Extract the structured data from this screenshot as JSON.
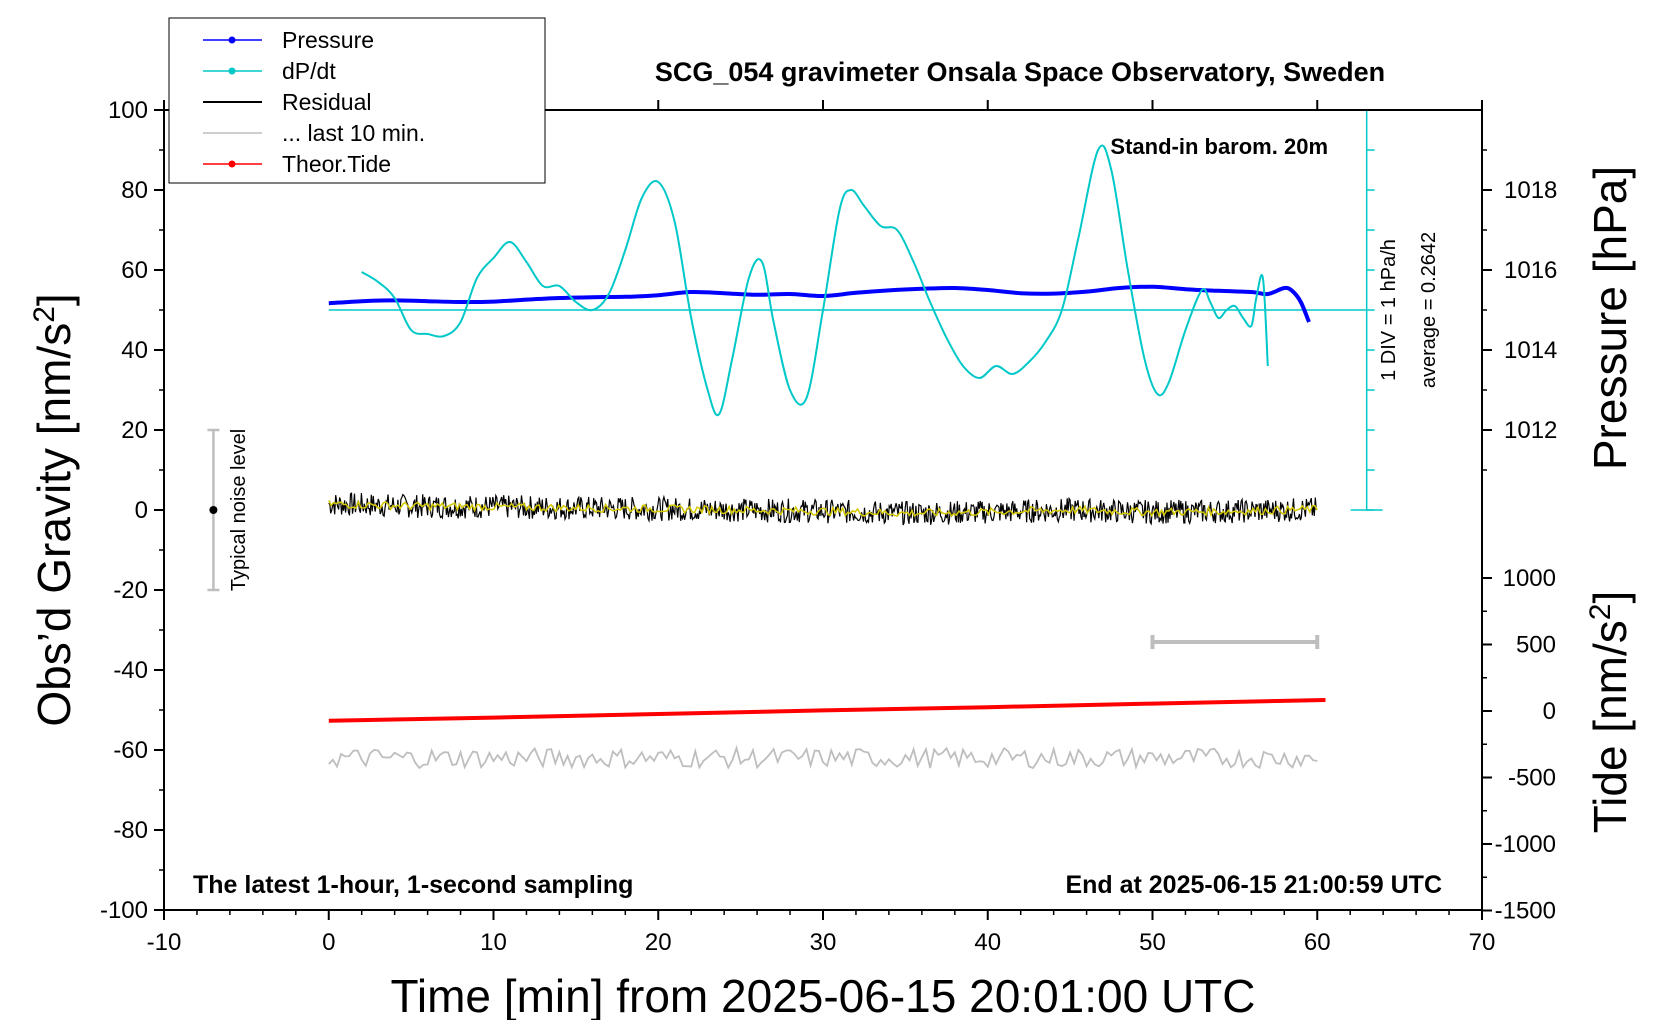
{
  "chart_data": {
    "type": "line",
    "title": "SCG_054 gravimeter Onsala Space Observatory, Sweden",
    "xlabel": "Time [min] from 2025-06-15 20:01:00 UTC",
    "ylabel_left": "Obs’d Gravity [nm/s",
    "ylabel_left_sup": "2",
    "ylabel_left_end": "]",
    "ylabel_right_pressure": "Pressure [hPa]",
    "ylabel_right_tide": "Tide [nm/s",
    "ylabel_right_tide_sup": "2",
    "ylabel_right_tide_end": "]",
    "xlim": [
      -10,
      70
    ],
    "ylim": [
      -100,
      100
    ],
    "x_ticks": [
      "-10",
      "0",
      "10",
      "20",
      "30",
      "40",
      "50",
      "60",
      "70"
    ],
    "y_ticks": [
      "100",
      "80",
      "60",
      "40",
      "20",
      "0",
      "-20",
      "-40",
      "-60",
      "-80",
      "-100"
    ],
    "pressure_axis": {
      "ticks": [
        "1018",
        "1016",
        "1014",
        "1012"
      ],
      "values": [
        1018,
        1016,
        1014,
        1012
      ],
      "unit_per_gravity_unit": 0.1,
      "offset_hpa": 1010
    },
    "tide_axis": {
      "ticks": [
        "1000",
        "500",
        "0",
        "-500",
        "-1000",
        "-1500"
      ],
      "values": [
        1000,
        500,
        0,
        -500,
        -1000,
        -1500
      ]
    },
    "legend": {
      "placement": "top-left",
      "entries": [
        {
          "label": "Pressure",
          "color": "#0000ff",
          "marker": true
        },
        {
          "label": "dP/dt",
          "color": "#00c8c8",
          "marker": true
        },
        {
          "label": "Residual",
          "color": "#000000",
          "marker": false
        },
        {
          "label": "... last 10 min.",
          "color": "#bebebe",
          "marker": false
        },
        {
          "label": "Theor.Tide",
          "color": "#ff0000",
          "marker": true
        }
      ]
    },
    "annotations": {
      "barometer": "Stand-in barom. 20m",
      "bottom_left": "The latest 1-hour, 1-second sampling",
      "bottom_right": "End at 2025-06-15 21:00:59 UTC",
      "scale_div": "1 DIV = 1 hPa/h",
      "average": "average = 0.2642",
      "noise": "Typical noise level"
    },
    "series": [
      {
        "name": "Pressure",
        "color": "#0000ff",
        "unit": "hPa",
        "x": [
          0,
          2,
          4,
          6,
          8,
          10,
          12,
          14,
          16,
          18,
          20,
          22,
          24,
          26,
          28,
          30,
          32,
          34,
          36,
          38,
          40,
          42,
          44,
          46,
          48,
          50,
          52,
          54,
          56,
          57,
          58,
          58.5,
          59,
          59.5
        ],
        "values": [
          1015.17,
          1015.22,
          1015.24,
          1015.22,
          1015.2,
          1015.21,
          1015.26,
          1015.3,
          1015.32,
          1015.33,
          1015.37,
          1015.45,
          1015.42,
          1015.38,
          1015.4,
          1015.35,
          1015.43,
          1015.49,
          1015.53,
          1015.55,
          1015.5,
          1015.42,
          1015.41,
          1015.46,
          1015.55,
          1015.58,
          1015.52,
          1015.48,
          1015.45,
          1015.4,
          1015.55,
          1015.47,
          1015.2,
          1014.7
        ]
      },
      {
        "name": "dP/dt",
        "color": "#00c8c8",
        "unit": "nm/s2",
        "x": [
          2,
          3,
          4,
          5,
          6,
          7,
          8,
          9,
          10,
          11,
          12,
          13,
          14,
          15,
          16,
          17,
          18,
          19,
          20,
          21,
          22,
          23,
          23.7,
          24.5,
          25.5,
          26.3,
          27,
          28,
          29,
          30,
          31,
          31.7,
          32.5,
          33.5,
          34.5,
          35.5,
          36.5,
          37.5,
          38.5,
          39.5,
          40.5,
          41.5,
          42.5,
          43.5,
          44.5,
          45.5,
          46.7,
          47.5,
          48.5,
          49.5,
          50.3,
          51,
          52,
          53,
          53.5,
          54,
          54.5,
          55,
          55.5,
          56,
          56.3,
          56.7,
          57
        ],
        "values": [
          59.5,
          57,
          53,
          45,
          44,
          43.5,
          47,
          58,
          63,
          67,
          62,
          56,
          56,
          52,
          50,
          54,
          65,
          78,
          82,
          72,
          48,
          30,
          24,
          38,
          58,
          62,
          47,
          30,
          28,
          50,
          75,
          80,
          76,
          71,
          70,
          62,
          52,
          43,
          36,
          33,
          36,
          34,
          37,
          42,
          50,
          68,
          90,
          85,
          60,
          38,
          29,
          32,
          45,
          55,
          52,
          48,
          50,
          51,
          48,
          46,
          53,
          58,
          36
        ]
      },
      {
        "name": "Residual",
        "color": "#000000",
        "unit": "nm/s2",
        "x": [
          0,
          5,
          10,
          15,
          20,
          25,
          30,
          35,
          40,
          45,
          50,
          55,
          60
        ],
        "values": [
          1.5,
          1.0,
          0.8,
          0.5,
          0.3,
          0.0,
          -0.3,
          -0.8,
          -0.5,
          0.0,
          -0.5,
          -0.3,
          0.2
        ]
      },
      {
        "name": "... last 10 min.",
        "color": "#bebebe",
        "unit": "min",
        "x": [
          50,
          60
        ],
        "values": [
          -33,
          -33
        ]
      },
      {
        "name": "Theor.Tide",
        "color": "#ff0000",
        "unit": "nm/s2",
        "x": [
          0,
          10,
          20,
          30,
          40,
          50,
          60.5
        ],
        "values": [
          -52.7,
          -51.9,
          -51.0,
          -50.1,
          -49.3,
          -48.4,
          -47.5
        ]
      },
      {
        "name": "",
        "color": "#bebebe",
        "unit": "nm/s2",
        "x": [
          0,
          60
        ],
        "values": [
          -62,
          -62
        ]
      }
    ],
    "noise_level": {
      "x": -7,
      "low": -20,
      "high": 20
    },
    "dpdt_baseline": 50
  }
}
